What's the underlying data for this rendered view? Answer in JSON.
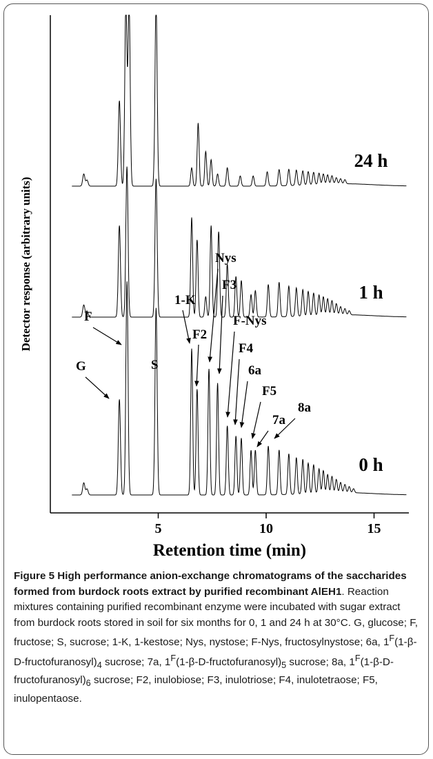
{
  "chart_data": {
    "type": "line",
    "xlabel": "Retention time (min)",
    "ylabel": "Detector response (arbitrary units)",
    "x_ticks": [
      5,
      10,
      15
    ],
    "xlim": [
      0,
      16.5
    ],
    "series": [
      {
        "name": "0 h",
        "peaks": [
          {
            "t": 1.55,
            "h": 0.06
          },
          {
            "t": 1.7,
            "h": 0.03
          },
          {
            "t": 3.2,
            "h": 0.47
          },
          {
            "t": 3.55,
            "h": 1.05
          },
          {
            "t": 4.9,
            "h": 0.92
          },
          {
            "t": 6.55,
            "h": 0.72
          },
          {
            "t": 6.8,
            "h": 0.52
          },
          {
            "t": 7.35,
            "h": 0.62
          },
          {
            "t": 7.75,
            "h": 0.55
          },
          {
            "t": 8.2,
            "h": 0.34
          },
          {
            "t": 8.6,
            "h": 0.29
          },
          {
            "t": 8.85,
            "h": 0.28
          },
          {
            "t": 9.3,
            "h": 0.22
          },
          {
            "t": 9.5,
            "h": 0.22
          },
          {
            "t": 10.1,
            "h": 0.24
          },
          {
            "t": 10.6,
            "h": 0.22
          },
          {
            "t": 11.05,
            "h": 0.2
          },
          {
            "t": 11.4,
            "h": 0.18
          },
          {
            "t": 11.7,
            "h": 0.17
          },
          {
            "t": 11.95,
            "h": 0.15
          },
          {
            "t": 12.2,
            "h": 0.14
          },
          {
            "t": 12.45,
            "h": 0.12
          },
          {
            "t": 12.65,
            "h": 0.11
          },
          {
            "t": 12.85,
            "h": 0.09
          },
          {
            "t": 13.05,
            "h": 0.08
          },
          {
            "t": 13.25,
            "h": 0.065
          },
          {
            "t": 13.45,
            "h": 0.05
          },
          {
            "t": 13.65,
            "h": 0.04
          },
          {
            "t": 13.85,
            "h": 0.03
          },
          {
            "t": 14.05,
            "h": 0.02
          }
        ]
      },
      {
        "name": "1 h",
        "peaks": [
          {
            "t": 1.55,
            "h": 0.06
          },
          {
            "t": 1.7,
            "h": 0.03
          },
          {
            "t": 3.2,
            "h": 0.45
          },
          {
            "t": 3.55,
            "h": 0.74
          },
          {
            "t": 4.9,
            "h": 0.68
          },
          {
            "t": 6.55,
            "h": 0.49
          },
          {
            "t": 6.8,
            "h": 0.38
          },
          {
            "t": 7.2,
            "h": 0.1
          },
          {
            "t": 7.45,
            "h": 0.45
          },
          {
            "t": 7.8,
            "h": 0.42
          },
          {
            "t": 8.2,
            "h": 0.26
          },
          {
            "t": 8.6,
            "h": 0.2
          },
          {
            "t": 8.85,
            "h": 0.18
          },
          {
            "t": 9.3,
            "h": 0.11
          },
          {
            "t": 9.5,
            "h": 0.13
          },
          {
            "t": 10.1,
            "h": 0.16
          },
          {
            "t": 10.6,
            "h": 0.17
          },
          {
            "t": 11.05,
            "h": 0.15
          },
          {
            "t": 11.4,
            "h": 0.14
          },
          {
            "t": 11.7,
            "h": 0.13
          },
          {
            "t": 11.95,
            "h": 0.12
          },
          {
            "t": 12.2,
            "h": 0.11
          },
          {
            "t": 12.45,
            "h": 0.1
          },
          {
            "t": 12.65,
            "h": 0.09
          },
          {
            "t": 12.85,
            "h": 0.08
          },
          {
            "t": 13.05,
            "h": 0.07
          },
          {
            "t": 13.25,
            "h": 0.055
          },
          {
            "t": 13.45,
            "h": 0.04
          },
          {
            "t": 13.65,
            "h": 0.03
          },
          {
            "t": 13.85,
            "h": 0.02
          }
        ]
      },
      {
        "name": "24 h",
        "peaks": [
          {
            "t": 1.55,
            "h": 0.06
          },
          {
            "t": 1.7,
            "h": 0.03
          },
          {
            "t": 3.2,
            "h": 0.42
          },
          {
            "t": 3.5,
            "h": 0.9
          },
          {
            "t": 3.65,
            "h": 0.9
          },
          {
            "t": 4.9,
            "h": 0.9
          },
          {
            "t": 6.55,
            "h": 0.09
          },
          {
            "t": 6.85,
            "h": 0.31
          },
          {
            "t": 7.2,
            "h": 0.17
          },
          {
            "t": 7.45,
            "h": 0.13
          },
          {
            "t": 7.75,
            "h": 0.06
          },
          {
            "t": 8.2,
            "h": 0.09
          },
          {
            "t": 8.8,
            "h": 0.05
          },
          {
            "t": 9.4,
            "h": 0.05
          },
          {
            "t": 10.05,
            "h": 0.07
          },
          {
            "t": 10.6,
            "h": 0.08
          },
          {
            "t": 11.05,
            "h": 0.08
          },
          {
            "t": 11.4,
            "h": 0.075
          },
          {
            "t": 11.7,
            "h": 0.07
          },
          {
            "t": 11.95,
            "h": 0.065
          },
          {
            "t": 12.2,
            "h": 0.06
          },
          {
            "t": 12.45,
            "h": 0.055
          },
          {
            "t": 12.65,
            "h": 0.05
          },
          {
            "t": 12.85,
            "h": 0.045
          },
          {
            "t": 13.05,
            "h": 0.04
          },
          {
            "t": 13.25,
            "h": 0.03
          },
          {
            "t": 13.45,
            "h": 0.025
          },
          {
            "t": 13.65,
            "h": 0.02
          }
        ]
      }
    ],
    "annotations": [
      {
        "label": "G",
        "t": 3.2
      },
      {
        "label": "F",
        "t": 3.55
      },
      {
        "label": "S",
        "t": 4.9
      },
      {
        "label": "1-K",
        "t": 6.55
      },
      {
        "label": "F2",
        "t": 6.8
      },
      {
        "label": "Nys",
        "t": 7.35
      },
      {
        "label": "F3",
        "t": 7.75
      },
      {
        "label": "F-Nys",
        "t": 8.2
      },
      {
        "label": "F4",
        "t": 8.6
      },
      {
        "label": "6a",
        "t": 8.85
      },
      {
        "label": "F5",
        "t": 9.3
      },
      {
        "label": "7a",
        "t": 9.5
      },
      {
        "label": "8a",
        "t": 10.1
      }
    ]
  },
  "caption": {
    "title": "Figure 5 High performance anion-exchange chromatograms of the saccharides formed from burdock roots extract by purified recombinant AlEH1",
    "body": ". Reaction mixtures containing purified recombinant enzyme were incubated with sugar extract from burdock roots stored in soil for six months for 0, 1 and 24 h at 30°C. G, glucose; F, fructose; S, sucrose; 1-K, 1-kestose; Nys, nystose; F-Nys, fructosylnystose; 6a, 1F(1-β-D-fructofuranosyl)4 sucrose; 7a, 1F(1-β-D-fructofuranosyl)5 sucrose; 8a, 1F(1-β-D-fructofuranosyl)6 sucrose; F2, inulobiose; F3, inulotriose; F4, inulotetraose; F5, inulopentaose."
  }
}
